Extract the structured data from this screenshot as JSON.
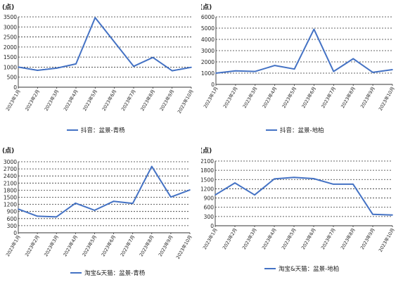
{
  "chart_data": [
    {
      "type": "line",
      "unit_label": "(点)",
      "ylim": [
        0,
        3500
      ],
      "yticks": [
        0,
        500,
        1000,
        1500,
        2000,
        2500,
        3000,
        3500
      ],
      "categories": [
        "2023年1月",
        "2023年2月",
        "2023年3月",
        "2023年4月",
        "2023年5月",
        "2023年6月",
        "2023年7月",
        "2023年8月",
        "2023年9月",
        "2023年10月"
      ],
      "series": [
        {
          "name": "抖音：盆景-青杨",
          "color": "#4472c4",
          "values": [
            1000,
            840,
            950,
            1160,
            3460,
            2250,
            1040,
            1480,
            820,
            990
          ]
        }
      ],
      "legend": "bottom",
      "grid": true
    },
    {
      "type": "line",
      "unit_label": "(点)",
      "ylim": [
        0,
        6000
      ],
      "yticks": [
        0,
        1000,
        2000,
        3000,
        4000,
        5000,
        6000
      ],
      "categories": [
        "2023年1月",
        "2023年2月",
        "2023年3月",
        "2023年4月",
        "2023年5月",
        "2023年6月",
        "2023年7月",
        "2023年8月",
        "2023年9月",
        "2023年10月"
      ],
      "series": [
        {
          "name": "抖音：盆景-地柏",
          "color": "#4472c4",
          "values": [
            1000,
            1200,
            1150,
            1680,
            1360,
            4900,
            1150,
            2280,
            1070,
            1310
          ]
        }
      ],
      "legend": "bottom",
      "grid": true
    },
    {
      "type": "line",
      "unit_label": "(点)",
      "ylim": [
        0,
        3000
      ],
      "yticks": [
        0,
        300,
        600,
        900,
        1200,
        1500,
        1800,
        2100,
        2400,
        2700,
        3000
      ],
      "categories": [
        "2023年1月",
        "2023年2月",
        "2023年3月",
        "2023年4月",
        "2023年5月",
        "2023年6月",
        "2023年7月",
        "2023年8月",
        "2023年9月",
        "2023年10月"
      ],
      "series": [
        {
          "name": "淘宝&天猫：盆景-青杨",
          "color": "#4472c4",
          "values": [
            1000,
            700,
            670,
            1250,
            950,
            1330,
            1240,
            2800,
            1510,
            1810
          ]
        }
      ],
      "legend": "bottom",
      "grid": true
    },
    {
      "type": "line",
      "unit_label": "(点)",
      "ylim": [
        0,
        2100
      ],
      "yticks": [
        0,
        300,
        600,
        900,
        1200,
        1500,
        1800,
        2100
      ],
      "categories": [
        "2023年1月",
        "2023年2月",
        "2023年3月",
        "2023年4月",
        "2023年5月",
        "2023年6月",
        "2023年7月",
        "2023年8月",
        "2023年9月",
        "2023年10月"
      ],
      "series": [
        {
          "name": "淘宝&天猫：盆景-地柏",
          "color": "#4472c4",
          "values": [
            1000,
            1390,
            1000,
            1520,
            1570,
            1530,
            1350,
            1350,
            370,
            350
          ]
        }
      ],
      "legend": "bottom",
      "grid": true
    }
  ]
}
